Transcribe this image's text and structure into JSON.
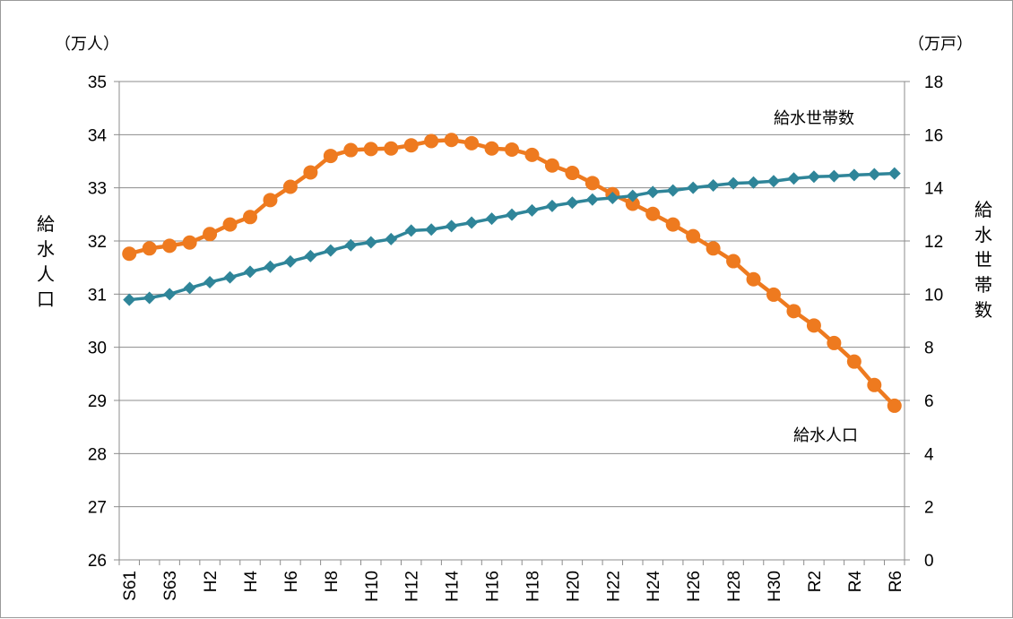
{
  "chart_data": {
    "type": "line",
    "categories": [
      "S61",
      "S62",
      "S63",
      "H1",
      "H2",
      "H3",
      "H4",
      "H5",
      "H6",
      "H7",
      "H8",
      "H9",
      "H10",
      "H11",
      "H12",
      "H13",
      "H14",
      "H15",
      "H16",
      "H17",
      "H18",
      "H19",
      "H20",
      "H21",
      "H22",
      "H23",
      "H24",
      "H25",
      "H26",
      "H27",
      "H28",
      "H29",
      "H30",
      "R1",
      "R2",
      "R3",
      "R4",
      "R5",
      "R6"
    ],
    "x_tick_labels": [
      "S61",
      "",
      "S63",
      "",
      "H2",
      "",
      "H4",
      "",
      "H6",
      "",
      "H8",
      "",
      "H10",
      "",
      "H12",
      "",
      "H14",
      "",
      "H16",
      "",
      "H18",
      "",
      "H20",
      "",
      "H22",
      "",
      "H24",
      "",
      "H26",
      "",
      "H28",
      "",
      "H30",
      "",
      "R2",
      "",
      "R4",
      "",
      "R6"
    ],
    "y_left": {
      "unit_label": "（万人）",
      "title": "給水人口",
      "ylim": [
        26,
        35
      ],
      "ticks": [
        26,
        27,
        28,
        29,
        30,
        31,
        32,
        33,
        34,
        35
      ]
    },
    "y_right": {
      "unit_label": "（万戸）",
      "title": "給水世帯数",
      "ylim": [
        0,
        18
      ],
      "ticks": [
        0,
        2,
        4,
        6,
        8,
        10,
        12,
        14,
        16,
        18
      ]
    },
    "grid": "horizontal",
    "series": [
      {
        "name": "給水人口",
        "axis": "left",
        "color": "#ee7a1f",
        "marker": "circle",
        "values": [
          31.76,
          31.86,
          31.91,
          31.97,
          32.13,
          32.31,
          32.45,
          32.77,
          33.02,
          33.29,
          33.6,
          33.71,
          33.73,
          33.74,
          33.8,
          33.88,
          33.9,
          33.84,
          33.74,
          33.72,
          33.62,
          33.42,
          33.28,
          33.09,
          32.88,
          32.7,
          32.51,
          32.31,
          32.09,
          31.86,
          31.62,
          31.28,
          30.99,
          30.68,
          30.41,
          30.08,
          29.73,
          29.29,
          28.9
        ]
      },
      {
        "name": "給水世帯数",
        "axis": "right",
        "color": "#2f8599",
        "marker": "diamond",
        "values": [
          9.79,
          9.86,
          10.0,
          10.23,
          10.45,
          10.63,
          10.84,
          11.03,
          11.23,
          11.43,
          11.64,
          11.84,
          11.95,
          12.07,
          12.39,
          12.43,
          12.56,
          12.69,
          12.84,
          12.99,
          13.15,
          13.32,
          13.44,
          13.56,
          13.62,
          13.7,
          13.84,
          13.9,
          14.0,
          14.09,
          14.17,
          14.2,
          14.25,
          14.35,
          14.42,
          14.44,
          14.48,
          14.51,
          14.54
        ]
      }
    ],
    "annotations": [
      {
        "text": "給水世帯数"
      },
      {
        "text": "給水人口"
      }
    ]
  }
}
